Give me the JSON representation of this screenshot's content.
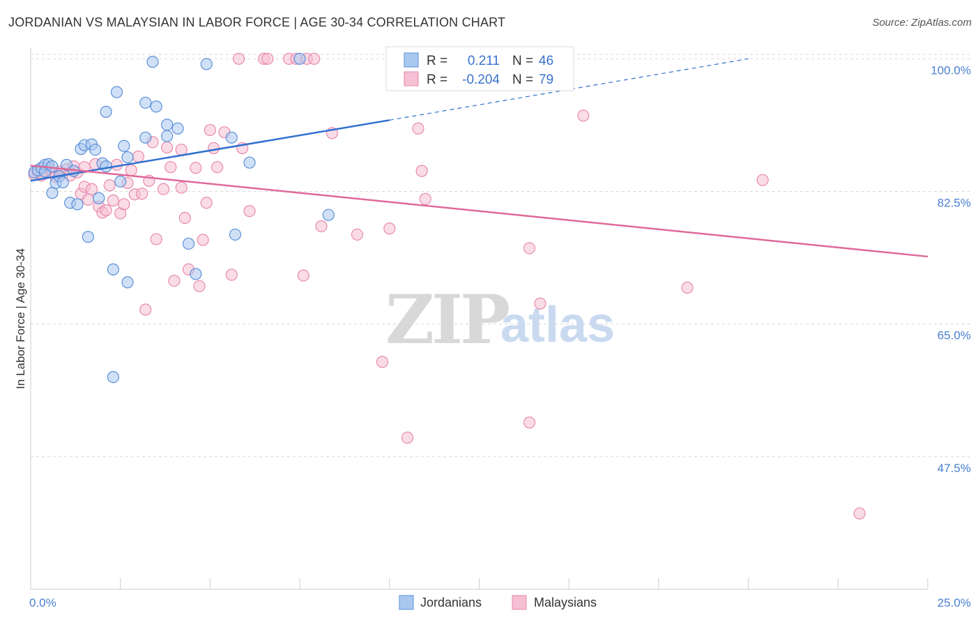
{
  "header": {
    "title": "JORDANIAN VS MALAYSIAN IN LABOR FORCE | AGE 30-34 CORRELATION CHART",
    "source": "Source: ZipAtlas.com"
  },
  "watermark": {
    "zip": "ZIP",
    "atlas": "atlas"
  },
  "colors": {
    "jordanian_fill": "#a9c8f0",
    "jordanian_stroke": "#5b8fd8",
    "jordanian_line": "#2f6fcf",
    "malaysian_fill": "#f6bfd3",
    "malaysian_stroke": "#e889ab",
    "malaysian_line": "#e0699a",
    "tick_text": "#4a7fd1",
    "grid": "#d8d8d8"
  },
  "legend": {
    "rows": [
      {
        "r_label": "R =",
        "r_value": "0.211",
        "n_label": "N =",
        "n_value": "46"
      },
      {
        "r_label": "R =",
        "r_value": "-0.204",
        "n_label": "N =",
        "n_value": "79"
      }
    ]
  },
  "bottom_legend": {
    "jordanians": "Jordanians",
    "malaysians": "Malaysians"
  },
  "chart_data": {
    "type": "scatter",
    "title": "JORDANIAN VS MALAYSIAN IN LABOR FORCE | AGE 30-34 CORRELATION CHART",
    "ylabel": "In Labor Force | Age 30-34",
    "xlabel": "",
    "x_range": [
      0,
      25
    ],
    "y_range": [
      30,
      101.5
    ],
    "y_ticks": [
      {
        "value": 100,
        "label": "100.0%"
      },
      {
        "value": 82.5,
        "label": "82.5%"
      },
      {
        "value": 65,
        "label": "65.0%"
      },
      {
        "value": 47.5,
        "label": "47.5%"
      }
    ],
    "x_ticks": [
      {
        "value": 0,
        "label": "0.0%"
      },
      {
        "value": 25,
        "label": "25.0%"
      }
    ],
    "x_minor_ticks": [
      2.5,
      5,
      7.5,
      10,
      12.5,
      15,
      17.5,
      20,
      22.5
    ],
    "series": [
      {
        "name": "Jordanians",
        "R": 0.211,
        "N": 46,
        "trend": {
          "x0": 0,
          "y0": 83.9,
          "x1": 10,
          "y1": 91.9,
          "dash_to_x": 20,
          "dash_to_y": 100.0
        },
        "points": [
          [
            0.1,
            85.0
          ],
          [
            0.2,
            85.3
          ],
          [
            0.3,
            85.6
          ],
          [
            0.4,
            86.0
          ],
          [
            0.4,
            85.1
          ],
          [
            0.5,
            86.1
          ],
          [
            0.6,
            85.8
          ],
          [
            0.6,
            82.3
          ],
          [
            0.7,
            83.6
          ],
          [
            0.8,
            84.5
          ],
          [
            0.9,
            83.7
          ],
          [
            1.0,
            86.0
          ],
          [
            1.1,
            81.0
          ],
          [
            1.2,
            85.2
          ],
          [
            1.3,
            80.8
          ],
          [
            1.4,
            88.1
          ],
          [
            1.5,
            88.6
          ],
          [
            1.6,
            76.5
          ],
          [
            1.7,
            88.7
          ],
          [
            1.8,
            88.0
          ],
          [
            1.9,
            81.6
          ],
          [
            2.0,
            86.2
          ],
          [
            2.1,
            85.8
          ],
          [
            2.1,
            93.0
          ],
          [
            2.3,
            72.2
          ],
          [
            2.3,
            58.0
          ],
          [
            2.4,
            95.6
          ],
          [
            2.5,
            83.8
          ],
          [
            2.6,
            88.5
          ],
          [
            2.7,
            87.0
          ],
          [
            2.7,
            70.5
          ],
          [
            3.2,
            94.2
          ],
          [
            3.2,
            89.6
          ],
          [
            3.5,
            93.7
          ],
          [
            3.4,
            99.6
          ],
          [
            3.8,
            91.3
          ],
          [
            3.8,
            89.8
          ],
          [
            4.1,
            90.8
          ],
          [
            4.4,
            75.6
          ],
          [
            4.6,
            71.6
          ],
          [
            4.9,
            99.3
          ],
          [
            5.6,
            89.6
          ],
          [
            5.7,
            76.8
          ],
          [
            6.1,
            86.3
          ],
          [
            7.5,
            100.0
          ],
          [
            8.3,
            79.4
          ]
        ]
      },
      {
        "name": "Malaysians",
        "R": -0.204,
        "N": 79,
        "trend": {
          "x0": 0,
          "y0": 85.9,
          "x1": 25,
          "y1": 73.9
        },
        "points": [
          [
            0.1,
            84.7
          ],
          [
            0.2,
            85.0
          ],
          [
            0.3,
            84.6
          ],
          [
            0.4,
            85.2
          ],
          [
            0.5,
            85.6
          ],
          [
            0.6,
            85.0
          ],
          [
            0.7,
            84.4
          ],
          [
            0.8,
            85.1
          ],
          [
            0.9,
            84.9
          ],
          [
            1.0,
            85.4
          ],
          [
            1.1,
            84.6
          ],
          [
            1.2,
            85.8
          ],
          [
            1.3,
            85.0
          ],
          [
            1.4,
            82.2
          ],
          [
            1.5,
            85.7
          ],
          [
            1.5,
            83.1
          ],
          [
            1.6,
            81.4
          ],
          [
            1.7,
            82.8
          ],
          [
            1.8,
            86.1
          ],
          [
            1.9,
            80.5
          ],
          [
            2.0,
            79.7
          ],
          [
            2.1,
            80.0
          ],
          [
            2.2,
            83.3
          ],
          [
            2.3,
            81.3
          ],
          [
            2.4,
            86.0
          ],
          [
            2.5,
            79.6
          ],
          [
            2.6,
            80.8
          ],
          [
            2.7,
            83.6
          ],
          [
            2.8,
            85.3
          ],
          [
            2.9,
            82.1
          ],
          [
            3.0,
            87.1
          ],
          [
            3.1,
            82.2
          ],
          [
            3.2,
            66.9
          ],
          [
            3.3,
            83.9
          ],
          [
            3.4,
            89.0
          ],
          [
            3.5,
            76.2
          ],
          [
            3.7,
            82.8
          ],
          [
            3.8,
            88.3
          ],
          [
            3.9,
            85.7
          ],
          [
            4.0,
            70.7
          ],
          [
            4.2,
            83.0
          ],
          [
            4.2,
            88.0
          ],
          [
            4.3,
            79.0
          ],
          [
            4.4,
            72.2
          ],
          [
            4.6,
            85.6
          ],
          [
            4.7,
            70.0
          ],
          [
            4.8,
            76.1
          ],
          [
            4.9,
            81.0
          ],
          [
            5.0,
            90.6
          ],
          [
            5.1,
            88.2
          ],
          [
            5.2,
            85.7
          ],
          [
            5.4,
            90.3
          ],
          [
            5.6,
            71.5
          ],
          [
            5.9,
            88.2
          ],
          [
            6.1,
            79.9
          ],
          [
            5.8,
            100.0
          ],
          [
            6.5,
            100.0
          ],
          [
            6.6,
            100.0
          ],
          [
            7.2,
            100.0
          ],
          [
            7.4,
            100.0
          ],
          [
            7.7,
            100.0
          ],
          [
            7.9,
            100.0
          ],
          [
            7.6,
            71.4
          ],
          [
            8.1,
            77.9
          ],
          [
            8.4,
            90.2
          ],
          [
            9.1,
            76.8
          ],
          [
            9.8,
            60.0
          ],
          [
            10.0,
            77.6
          ],
          [
            10.5,
            50.0
          ],
          [
            10.8,
            90.8
          ],
          [
            10.9,
            85.2
          ],
          [
            11.0,
            81.5
          ],
          [
            13.9,
            75.0
          ],
          [
            13.9,
            52.0
          ],
          [
            14.2,
            67.7
          ],
          [
            15.4,
            92.5
          ],
          [
            18.3,
            69.8
          ],
          [
            20.4,
            84.0
          ],
          [
            23.1,
            40.0
          ]
        ]
      }
    ]
  }
}
